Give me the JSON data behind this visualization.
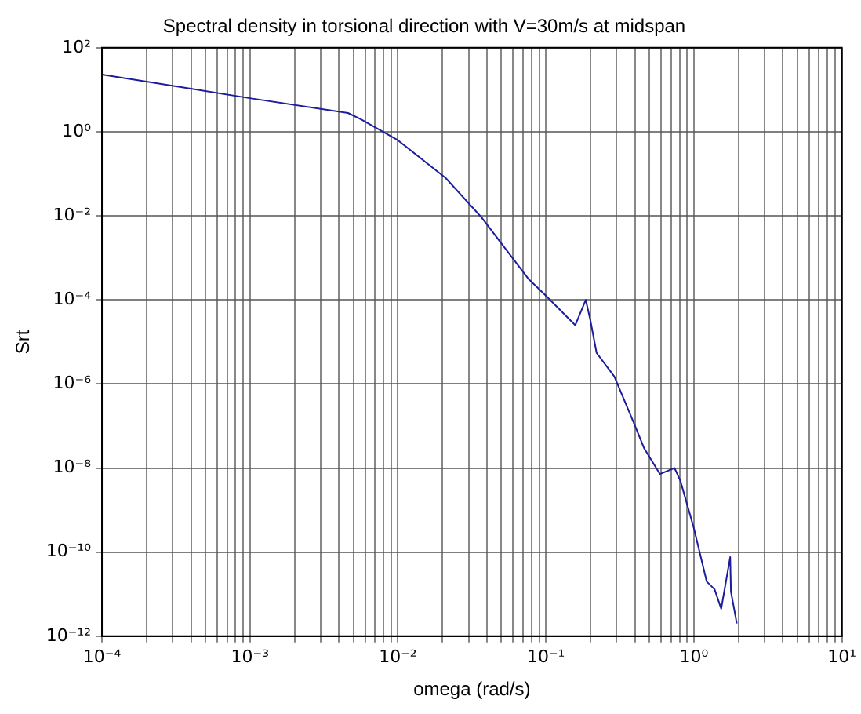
{
  "chart_data": {
    "type": "line",
    "title": "Spectral density in torsional direction with V=30m/s at midspan",
    "xlabel": "omega (rad/s)",
    "ylabel": "Srt",
    "log": "xy",
    "grid": true,
    "legend": false,
    "marker": "none",
    "line_style": "solid",
    "xlim": [
      0.0001,
      10
    ],
    "ylim": [
      1e-12,
      100
    ],
    "xticks": [
      {
        "value": 0.0001,
        "label": "10⁻⁴"
      },
      {
        "value": 0.0002,
        "label": null
      },
      {
        "value": 0.0003,
        "label": null
      },
      {
        "value": 0.0004,
        "label": null
      },
      {
        "value": 0.0005,
        "label": null
      },
      {
        "value": 0.0006,
        "label": null
      },
      {
        "value": 0.0007,
        "label": null
      },
      {
        "value": 0.0008,
        "label": null
      },
      {
        "value": 0.0009,
        "label": null
      },
      {
        "value": 0.001,
        "label": "10⁻³"
      },
      {
        "value": 0.002,
        "label": null
      },
      {
        "value": 0.003,
        "label": null
      },
      {
        "value": 0.004,
        "label": null
      },
      {
        "value": 0.005,
        "label": null
      },
      {
        "value": 0.006,
        "label": null
      },
      {
        "value": 0.007,
        "label": null
      },
      {
        "value": 0.008,
        "label": null
      },
      {
        "value": 0.009,
        "label": null
      },
      {
        "value": 0.01,
        "label": "10⁻²"
      },
      {
        "value": 0.02,
        "label": null
      },
      {
        "value": 0.03,
        "label": null
      },
      {
        "value": 0.04,
        "label": null
      },
      {
        "value": 0.05,
        "label": null
      },
      {
        "value": 0.06,
        "label": null
      },
      {
        "value": 0.07,
        "label": null
      },
      {
        "value": 0.08,
        "label": null
      },
      {
        "value": 0.09,
        "label": null
      },
      {
        "value": 0.1,
        "label": "10⁻¹"
      },
      {
        "value": 0.2,
        "label": null
      },
      {
        "value": 0.3,
        "label": null
      },
      {
        "value": 0.4,
        "label": null
      },
      {
        "value": 0.5,
        "label": null
      },
      {
        "value": 0.6,
        "label": null
      },
      {
        "value": 0.7,
        "label": null
      },
      {
        "value": 0.8,
        "label": null
      },
      {
        "value": 0.9,
        "label": null
      },
      {
        "value": 1,
        "label": "10⁰"
      },
      {
        "value": 2,
        "label": null
      },
      {
        "value": 3,
        "label": null
      },
      {
        "value": 4,
        "label": null
      },
      {
        "value": 5,
        "label": null
      },
      {
        "value": 6,
        "label": null
      },
      {
        "value": 7,
        "label": null
      },
      {
        "value": 8,
        "label": null
      },
      {
        "value": 9,
        "label": null
      },
      {
        "value": 10,
        "label": "10¹"
      }
    ],
    "yticks": [
      {
        "value": 1e-12,
        "label": "10⁻¹²"
      },
      {
        "value": 1e-10,
        "label": "10⁻¹⁰"
      },
      {
        "value": 1e-08,
        "label": "10⁻⁸"
      },
      {
        "value": 1e-06,
        "label": "10⁻⁶"
      },
      {
        "value": 0.0001,
        "label": "10⁻⁴"
      },
      {
        "value": 0.01,
        "label": "10⁻²"
      },
      {
        "value": 1,
        "label": "10⁰"
      },
      {
        "value": 100,
        "label": "10²"
      }
    ],
    "series": [
      {
        "color": "#1c1c9c",
        "x": [
          0.0001,
          0.001,
          0.0046,
          0.0056,
          0.01,
          0.021,
          0.037,
          0.076,
          0.098,
          0.158,
          0.186,
          0.2,
          0.22,
          0.29,
          0.39,
          0.46,
          0.59,
          0.74,
          0.81,
          1.0,
          1.22,
          1.38,
          1.53,
          1.76,
          1.78,
          1.95
        ],
        "values": [
          23,
          6.3,
          2.8,
          2.0,
          0.63,
          0.08,
          0.0089,
          0.00032,
          0.000135,
          2.5e-05,
          0.0001,
          3.2e-05,
          5.5e-06,
          1.5e-06,
          1.26e-07,
          3e-08,
          7.2e-09,
          1e-08,
          5e-09,
          3.7e-10,
          2e-11,
          1.3e-11,
          4.5e-12,
          7.6e-11,
          1.15e-11,
          2e-12
        ]
      }
    ]
  }
}
